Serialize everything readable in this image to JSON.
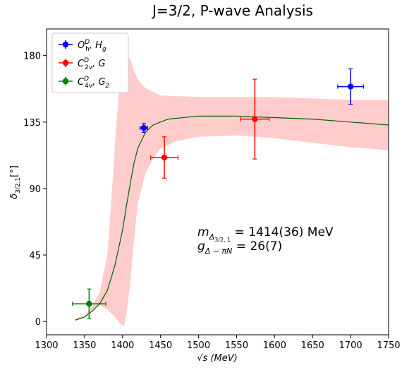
{
  "chart_data": {
    "type": "scatter",
    "title": "J=3/2, P-wave Analysis",
    "xlabel": "√s (MeV)",
    "ylabel": "δ_{3/2,1}[°]",
    "xlim": [
      1300,
      1750
    ],
    "ylim": [
      -9,
      198
    ],
    "xticks": [
      1300,
      1350,
      1400,
      1450,
      1500,
      1550,
      1600,
      1650,
      1700,
      1750
    ],
    "yticks": [
      0,
      45,
      90,
      135,
      180
    ],
    "grid": false,
    "legend_position": "top-left",
    "series": [
      {
        "name": "O_h^D, H_g",
        "color": "#0000ff",
        "points": [
          {
            "x": 1428,
            "y": 131,
            "xerr": 5,
            "yerr": 3
          },
          {
            "x": 1700,
            "y": 159,
            "xerr": 17,
            "yerr": 12
          }
        ]
      },
      {
        "name": "C_2v^D, G",
        "color": "#ff0000",
        "points": [
          {
            "x": 1455,
            "y": 111,
            "xerr": 18,
            "yerr": 14
          },
          {
            "x": 1574,
            "y": 137,
            "xerr": 19,
            "yerr": 27
          }
        ]
      },
      {
        "name": "C_4v^D, G_2",
        "color": "#008000",
        "points": [
          {
            "x": 1356,
            "y": 12,
            "xerr": 22,
            "yerr": 10
          }
        ]
      }
    ],
    "fit_curve": {
      "color": "#006400",
      "points": [
        [
          1338,
          1
        ],
        [
          1350,
          3
        ],
        [
          1360,
          7
        ],
        [
          1370,
          12
        ],
        [
          1380,
          21
        ],
        [
          1390,
          38
        ],
        [
          1400,
          62
        ],
        [
          1405,
          78
        ],
        [
          1410,
          93
        ],
        [
          1415,
          107
        ],
        [
          1420,
          117
        ],
        [
          1430,
          128
        ],
        [
          1440,
          133
        ],
        [
          1460,
          137
        ],
        [
          1500,
          139
        ],
        [
          1550,
          139
        ],
        [
          1600,
          138
        ],
        [
          1650,
          137
        ],
        [
          1700,
          135
        ],
        [
          1750,
          133
        ]
      ]
    },
    "error_band": {
      "color": "#ffcccc",
      "upper": [
        [
          1338,
          2
        ],
        [
          1350,
          4
        ],
        [
          1360,
          10
        ],
        [
          1370,
          20
        ],
        [
          1380,
          45
        ],
        [
          1385,
          80
        ],
        [
          1390,
          120
        ],
        [
          1395,
          155
        ],
        [
          1400,
          172
        ],
        [
          1405,
          180
        ],
        [
          1410,
          178
        ],
        [
          1415,
          170
        ],
        [
          1420,
          164
        ],
        [
          1430,
          158
        ],
        [
          1450,
          153
        ],
        [
          1500,
          152
        ],
        [
          1550,
          152
        ],
        [
          1600,
          152
        ],
        [
          1650,
          151
        ],
        [
          1700,
          150
        ],
        [
          1750,
          150
        ]
      ],
      "lower": [
        [
          1750,
          116
        ],
        [
          1700,
          118
        ],
        [
          1650,
          121
        ],
        [
          1600,
          124
        ],
        [
          1550,
          126
        ],
        [
          1500,
          125
        ],
        [
          1470,
          122
        ],
        [
          1450,
          117
        ],
        [
          1440,
          110
        ],
        [
          1430,
          100
        ],
        [
          1420,
          80
        ],
        [
          1415,
          55
        ],
        [
          1410,
          25
        ],
        [
          1405,
          5
        ],
        [
          1402,
          -3
        ],
        [
          1398,
          -2
        ],
        [
          1390,
          3
        ],
        [
          1380,
          8
        ],
        [
          1370,
          11
        ],
        [
          1360,
          8
        ],
        [
          1350,
          3
        ],
        [
          1338,
          0
        ]
      ]
    },
    "annotation": {
      "line1_main": "m",
      "line1_sub": "Δ",
      "line1_subsub": "3/2, 1",
      "line1_rest": " = 1414(36) MeV",
      "line2_main": "g",
      "line2_sub": "Δ − πN",
      "line2_rest": " = 26(7)"
    }
  }
}
